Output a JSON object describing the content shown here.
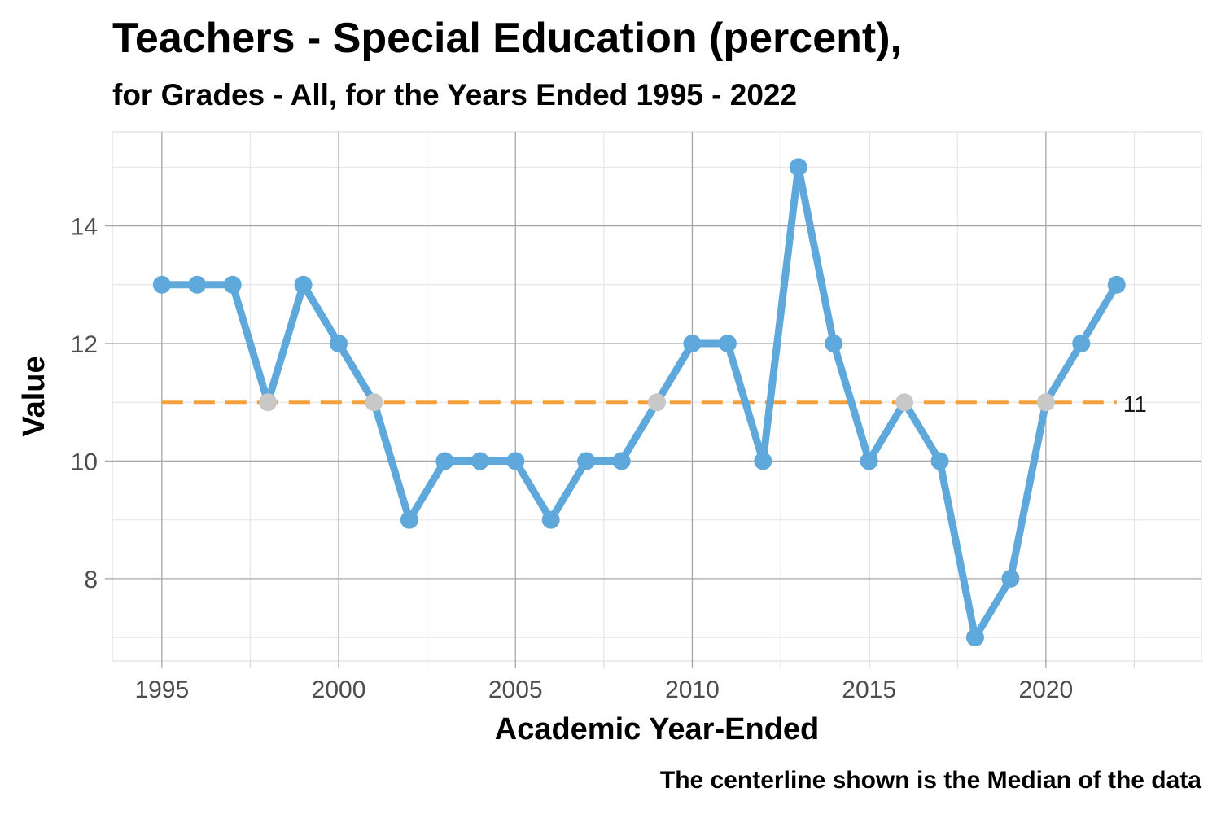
{
  "chart_data": {
    "type": "line",
    "title": "Teachers - Special Education (percent),",
    "subtitle": "for Grades - All, for the Years Ended 1995  -  2022",
    "xlabel": "Academic Year-Ended",
    "ylabel": "Value",
    "caption": "The centerline shown is the Median of the data",
    "x": [
      1995,
      1996,
      1997,
      1998,
      1999,
      2000,
      2001,
      2002,
      2003,
      2004,
      2005,
      2006,
      2007,
      2008,
      2009,
      2010,
      2011,
      2012,
      2013,
      2014,
      2015,
      2016,
      2017,
      2018,
      2019,
      2020,
      2021,
      2022
    ],
    "series": [
      {
        "values": [
          13,
          13,
          13,
          11,
          13,
          12,
          11,
          9,
          10,
          10,
          10,
          9,
          10,
          10,
          11,
          12,
          12,
          10,
          15,
          12,
          10,
          11,
          10,
          7,
          8,
          11,
          12,
          13
        ],
        "color": "#5fa8dc"
      }
    ],
    "median": 11,
    "median_label": "11",
    "median_color": "#f5a03c",
    "on_median_point_color": "#c8c8c8",
    "xlim": [
      1993.6,
      2024.4
    ],
    "ylim": [
      6.6,
      15.6
    ],
    "x_ticks": [
      1995,
      2000,
      2005,
      2010,
      2015,
      2020
    ],
    "y_ticks": [
      8,
      10,
      12,
      14
    ],
    "grid": true
  }
}
